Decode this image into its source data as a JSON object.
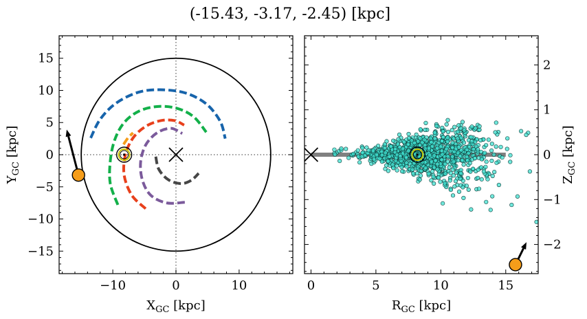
{
  "title": "(-15.43, -3.17, -2.45) [kpc]",
  "chart_data": [
    {
      "type": "line",
      "panel": "left",
      "xlabel_main": "X",
      "xlabel_sub": "GC",
      "xlabel_unit": " [kpc]",
      "ylabel_main": "Y",
      "ylabel_sub": "GC",
      "ylabel_unit": " [kpc]",
      "xlim": [
        -18.5,
        18.5
      ],
      "ylim": [
        -18.5,
        18.5
      ],
      "xticks": [
        -10,
        0,
        10
      ],
      "xtick_labels": [
        "−10",
        "0",
        "10"
      ],
      "yticks": [
        -15,
        -10,
        -5,
        0,
        5,
        10,
        15
      ],
      "ytick_labels": [
        "−15",
        "−10",
        "−5",
        "0",
        "5",
        "10",
        "15"
      ],
      "boundary_circle_radius": 15,
      "galactic_center": [
        0,
        0
      ],
      "sun_position": [
        -8.2,
        0
      ],
      "object_position": [
        -15.43,
        -3.17
      ],
      "object_velocity_arrow_end": [
        -17.3,
        3.9
      ],
      "spiral_arms": [
        {
          "color": "#1764ab",
          "points": [
            [
              -13.5,
              2.6
            ],
            [
              -12.0,
              5.5
            ],
            [
              -9.5,
              8.0
            ],
            [
              -6.0,
              9.7
            ],
            [
              -2.5,
              10.1
            ],
            [
              1.5,
              9.6
            ],
            [
              4.8,
              7.9
            ],
            [
              7.0,
              5.2
            ],
            [
              7.8,
              2.5
            ]
          ]
        },
        {
          "color": "#f59d1a",
          "points": [
            [
              -8.3,
              1.6
            ],
            [
              -7.6,
              2.6
            ],
            [
              -6.8,
              3.4
            ]
          ]
        },
        {
          "color": "#13b04a",
          "points": [
            [
              -9.2,
              -7.8
            ],
            [
              -10.4,
              -4.5
            ],
            [
              -10.4,
              -1.0
            ],
            [
              -9.7,
              2.3
            ],
            [
              -8.2,
              5.0
            ],
            [
              -5.8,
              6.8
            ],
            [
              -2.8,
              7.5
            ],
            [
              0.2,
              7.2
            ],
            [
              2.8,
              5.9
            ],
            [
              4.8,
              3.5
            ]
          ]
        },
        {
          "color": "#e8401c",
          "points": [
            [
              -4.8,
              -8.4
            ],
            [
              -7.0,
              -6.3
            ],
            [
              -8.2,
              -3.2
            ],
            [
              -8.0,
              0.0
            ],
            [
              -6.8,
              2.6
            ],
            [
              -4.8,
              4.4
            ],
            [
              -2.4,
              5.3
            ],
            [
              -0.2,
              5.3
            ],
            [
              1.3,
              4.6
            ]
          ]
        },
        {
          "color": "#7b5a9b",
          "points": [
            [
              1.4,
              -7.4
            ],
            [
              -1.5,
              -7.5
            ],
            [
              -4.0,
              -6.3
            ],
            [
              -5.3,
              -4.0
            ],
            [
              -5.6,
              -1.2
            ],
            [
              -4.8,
              1.5
            ],
            [
              -3.0,
              3.4
            ],
            [
              -0.8,
              4.1
            ],
            [
              1.0,
              3.3
            ]
          ]
        },
        {
          "color": "#464646",
          "points": [
            [
              -3.2,
              -0.3
            ],
            [
              -2.7,
              -2.3
            ],
            [
              -1.2,
              -3.9
            ],
            [
              0.8,
              -4.5
            ],
            [
              2.4,
              -4.0
            ],
            [
              3.6,
              -2.9
            ]
          ]
        }
      ]
    },
    {
      "type": "scatter",
      "panel": "right",
      "xlabel_main": "R",
      "xlabel_sub": "GC",
      "xlabel_unit": " [kpc]",
      "ylabel_main": "Z",
      "ylabel_sub": "GC",
      "ylabel_unit": " [kpc]",
      "xlim": [
        -0.5,
        17.5
      ],
      "ylim": [
        -2.65,
        2.65
      ],
      "xticks": [
        0,
        5,
        10,
        15
      ],
      "xtick_labels": [
        "0",
        "5",
        "10",
        "15"
      ],
      "yticks": [
        -2,
        -1,
        0,
        1,
        2
      ],
      "ytick_labels": [
        "−2",
        "−1",
        "0",
        "1",
        "2"
      ],
      "disk_extent": [
        0,
        15
      ],
      "galactic_center": [
        0,
        0
      ],
      "sun_position": [
        8.2,
        0
      ],
      "object_position": [
        15.75,
        -2.45
      ],
      "object_velocity_arrow_end": [
        16.6,
        -1.95
      ],
      "point_color": "#40e0d0",
      "distribution": {
        "count": 1100,
        "r_min": 1.5,
        "r_max": 17.5,
        "r_peak": 9,
        "z_max": 1.4,
        "z_min": -1.6
      }
    }
  ]
}
